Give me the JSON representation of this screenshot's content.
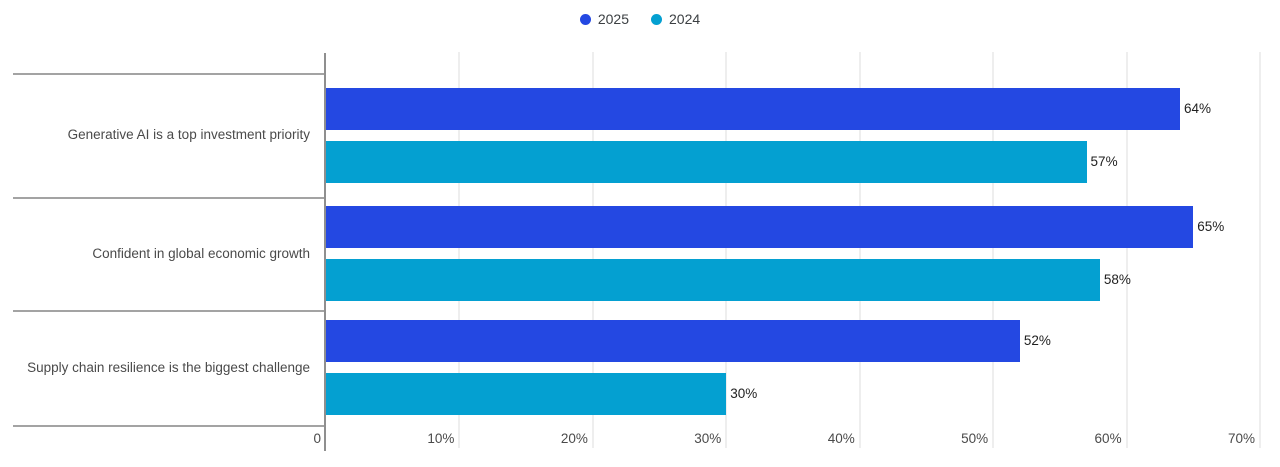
{
  "legend": {
    "items": [
      {
        "label": "2025",
        "color": "#2448e2"
      },
      {
        "label": "2024",
        "color": "#04a0d1"
      }
    ]
  },
  "chart_data": {
    "type": "bar",
    "orientation": "horizontal",
    "title": "",
    "xlabel": "",
    "ylabel": "",
    "categories": [
      "Generative AI is a top investment priority",
      "Confident in global economic growth",
      "Supply chain resilience is the biggest challenge"
    ],
    "series": [
      {
        "name": "2025",
        "color": "#2448e2",
        "values": [
          64,
          65,
          52
        ]
      },
      {
        "name": "2024",
        "color": "#04a0d1",
        "values": [
          57,
          58,
          30
        ]
      }
    ],
    "value_suffix": "%",
    "data_labels": true,
    "x_ticks": [
      "0",
      "10%",
      "20%",
      "30%",
      "40%",
      "50%",
      "60%",
      "70%"
    ],
    "xlim": [
      0,
      70
    ],
    "grid": true,
    "legend_position": "top"
  }
}
